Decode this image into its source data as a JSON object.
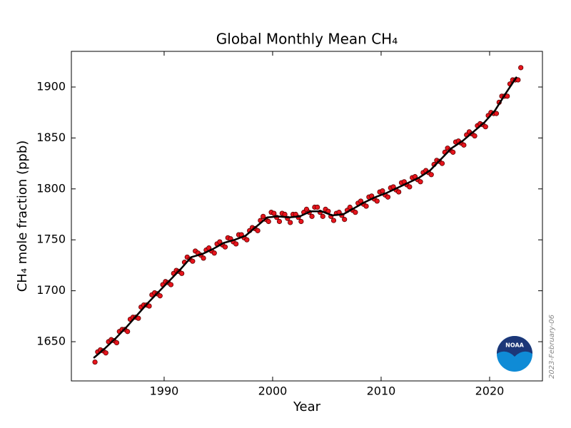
{
  "chart_data": {
    "type": "scatter_line",
    "title": "Global Monthly Mean CH₄",
    "x_label": "Year",
    "y_label": "CH₄ mole fraction (ppb)",
    "annotation": "2023-February-06",
    "logo_text": "NOAA",
    "xlim": [
      1981.45,
      2024.87
    ],
    "ylim": [
      1611.5,
      1935
    ],
    "xticks": [
      1990,
      2000,
      2010,
      2020
    ],
    "yticks": [
      1650,
      1700,
      1750,
      1800,
      1850,
      1900
    ],
    "series": [
      {
        "kind": "points",
        "color": "#e8141c",
        "x": [
          1983.625,
          1983.875,
          1984.125,
          1984.375,
          1984.625,
          1984.875,
          1985.125,
          1985.375,
          1985.625,
          1985.875,
          1986.125,
          1986.375,
          1986.625,
          1986.875,
          1987.125,
          1987.375,
          1987.625,
          1987.875,
          1988.125,
          1988.375,
          1988.625,
          1988.875,
          1989.125,
          1989.375,
          1989.625,
          1989.875,
          1990.125,
          1990.375,
          1990.625,
          1990.875,
          1991.125,
          1991.375,
          1991.625,
          1991.875,
          1992.125,
          1992.375,
          1992.625,
          1992.875,
          1993.125,
          1993.375,
          1993.625,
          1993.875,
          1994.125,
          1994.375,
          1994.625,
          1994.875,
          1995.125,
          1995.375,
          1995.625,
          1995.875,
          1996.125,
          1996.375,
          1996.625,
          1996.875,
          1997.125,
          1997.375,
          1997.625,
          1997.875,
          1998.125,
          1998.375,
          1998.625,
          1998.875,
          1999.125,
          1999.375,
          1999.625,
          1999.875,
          2000.125,
          2000.375,
          2000.625,
          2000.875,
          2001.125,
          2001.375,
          2001.625,
          2001.875,
          2002.125,
          2002.375,
          2002.625,
          2002.875,
          2003.125,
          2003.375,
          2003.625,
          2003.875,
          2004.125,
          2004.375,
          2004.625,
          2004.875,
          2005.125,
          2005.375,
          2005.625,
          2005.875,
          2006.125,
          2006.375,
          2006.625,
          2006.875,
          2007.125,
          2007.375,
          2007.625,
          2007.875,
          2008.125,
          2008.375,
          2008.625,
          2008.875,
          2009.125,
          2009.375,
          2009.625,
          2009.875,
          2010.125,
          2010.375,
          2010.625,
          2010.875,
          2011.125,
          2011.375,
          2011.625,
          2011.875,
          2012.125,
          2012.375,
          2012.625,
          2012.875,
          2013.125,
          2013.375,
          2013.625,
          2013.875,
          2014.125,
          2014.375,
          2014.625,
          2014.875,
          2015.125,
          2015.375,
          2015.625,
          2015.875,
          2016.125,
          2016.375,
          2016.625,
          2016.875,
          2017.125,
          2017.375,
          2017.625,
          2017.875,
          2018.125,
          2018.375,
          2018.625,
          2018.875,
          2019.125,
          2019.375,
          2019.625,
          2019.875,
          2020.125,
          2020.375,
          2020.625,
          2020.875,
          2021.125,
          2021.375,
          2021.625,
          2021.875,
          2022.125,
          2022.375,
          2022.625,
          2022.875
        ],
        "values": [
          1630,
          1640,
          1642,
          1641,
          1639,
          1650,
          1652,
          1651,
          1649,
          1660,
          1662,
          1662,
          1660,
          1672,
          1674,
          1674,
          1673,
          1684,
          1686,
          1686,
          1685,
          1696,
          1698,
          1697,
          1695,
          1706,
          1709,
          1708,
          1706,
          1717,
          1720,
          1719,
          1717,
          1728,
          1733,
          1731,
          1729,
          1739,
          1737,
          1735,
          1732,
          1740,
          1742,
          1739,
          1737,
          1746,
          1748,
          1745,
          1743,
          1752,
          1751,
          1748,
          1746,
          1755,
          1755,
          1752,
          1750,
          1759,
          1762,
          1761,
          1759,
          1769,
          1773,
          1770,
          1768,
          1777,
          1776,
          1772,
          1768,
          1776,
          1775,
          1771,
          1767,
          1775,
          1775,
          1772,
          1768,
          1777,
          1780,
          1777,
          1773,
          1782,
          1782,
          1777,
          1773,
          1780,
          1778,
          1773,
          1769,
          1776,
          1777,
          1774,
          1770,
          1779,
          1782,
          1779,
          1777,
          1786,
          1788,
          1785,
          1783,
          1792,
          1793,
          1790,
          1788,
          1797,
          1798,
          1794,
          1792,
          1801,
          1802,
          1799,
          1797,
          1806,
          1807,
          1804,
          1802,
          1811,
          1812,
          1809,
          1807,
          1816,
          1818,
          1816,
          1814,
          1824,
          1828,
          1827,
          1825,
          1836,
          1840,
          1838,
          1836,
          1846,
          1847,
          1845,
          1843,
          1853,
          1856,
          1854,
          1852,
          1862,
          1864,
          1863,
          1861,
          1872,
          1875,
          1874,
          1874,
          1885,
          1891,
          1891,
          1891,
          1903,
          1907,
          1907,
          1907,
          1919
        ]
      },
      {
        "kind": "line",
        "color": "#000000",
        "x": [
          1983.5,
          1984.5,
          1985.5,
          1986.5,
          1987.5,
          1988.5,
          1989.5,
          1990.5,
          1991.5,
          1992.5,
          1993.5,
          1994.5,
          1995.5,
          1996.5,
          1997.5,
          1998.5,
          1999.5,
          2000.5,
          2001.5,
          2002.5,
          2003.5,
          2004.5,
          2005.5,
          2006.5,
          2007.5,
          2008.5,
          2009.5,
          2010.5,
          2011.5,
          2012.5,
          2013.5,
          2014.5,
          2015.5,
          2016.5,
          2017.5,
          2018.5,
          2019.5,
          2020.5,
          2021.5,
          2022.5
        ],
        "values": [
          1634,
          1643,
          1653,
          1664,
          1676,
          1688,
          1699,
          1710,
          1721,
          1733,
          1736,
          1741,
          1747,
          1750,
          1754,
          1763,
          1772,
          1773,
          1772,
          1773,
          1778,
          1778,
          1774,
          1775,
          1781,
          1787,
          1792,
          1796,
          1801,
          1806,
          1811,
          1818,
          1829,
          1840,
          1847,
          1856,
          1865,
          1877,
          1894,
          1910
        ]
      }
    ]
  }
}
